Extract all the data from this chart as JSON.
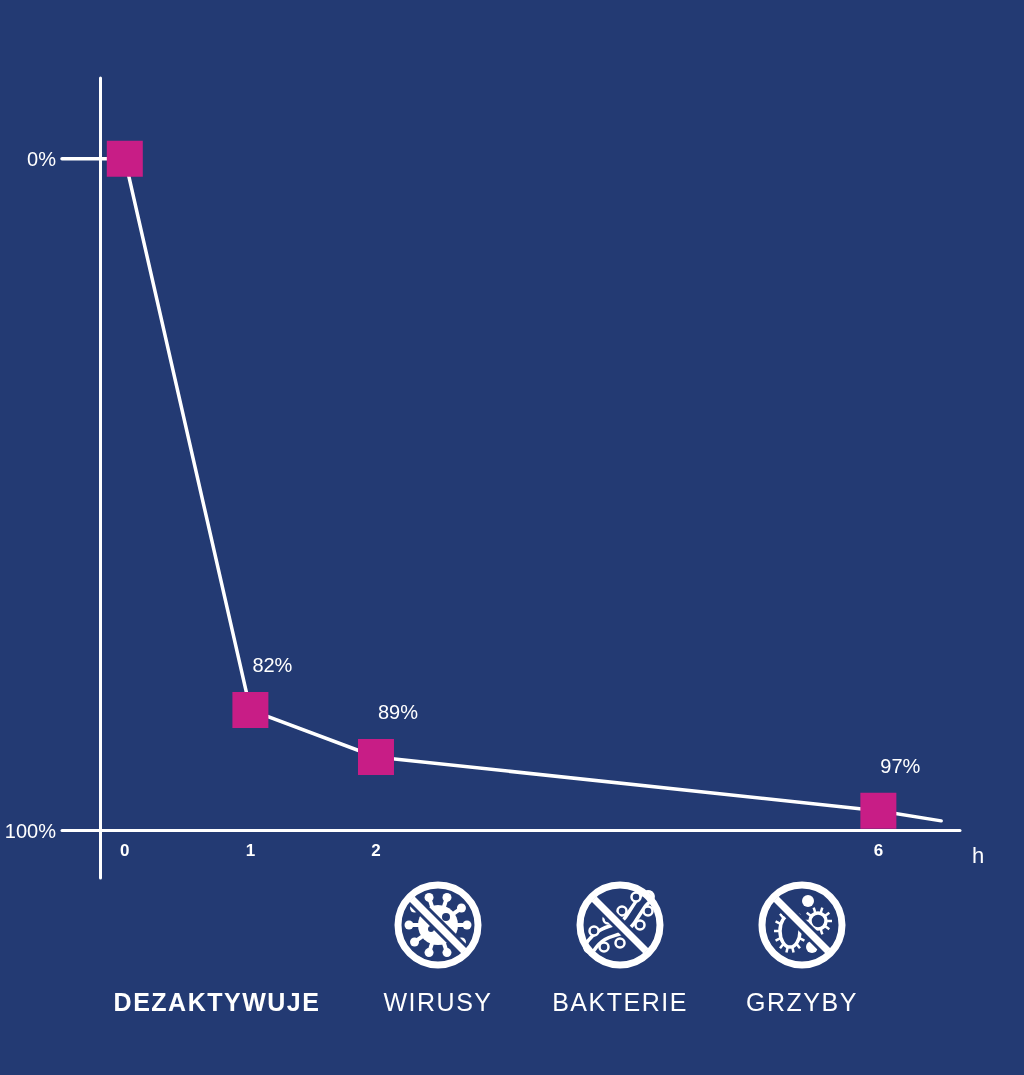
{
  "chart_data": {
    "type": "line",
    "x": [
      -0.5,
      0,
      1,
      2,
      6,
      6.5
    ],
    "series": [
      {
        "color": "#ffffff",
        "colors": [
          null,
          "#c81d86",
          "#c81d86",
          "#c81d86",
          "#c81d86",
          null
        ],
        "values": [
          0,
          0,
          82,
          89,
          97,
          98.5
        ],
        "value_labels": [
          null,
          null,
          "82%",
          "89%",
          "97%",
          null
        ]
      }
    ],
    "xlabel": "h",
    "xlim": [
      -0.5,
      6.65
    ],
    "xticks": [
      0,
      1,
      2,
      6
    ],
    "ylim": [
      107,
      -12
    ],
    "yticks": [
      {
        "value": 0,
        "label": "0%"
      },
      {
        "value": 100,
        "label": "100%"
      }
    ],
    "marker": "square",
    "line_style": "solid",
    "grid": false,
    "annotations": [
      "DEZAKTYWUJE",
      "WIRUSY",
      "BAKTERIE",
      "GRZYBY"
    ]
  }
}
